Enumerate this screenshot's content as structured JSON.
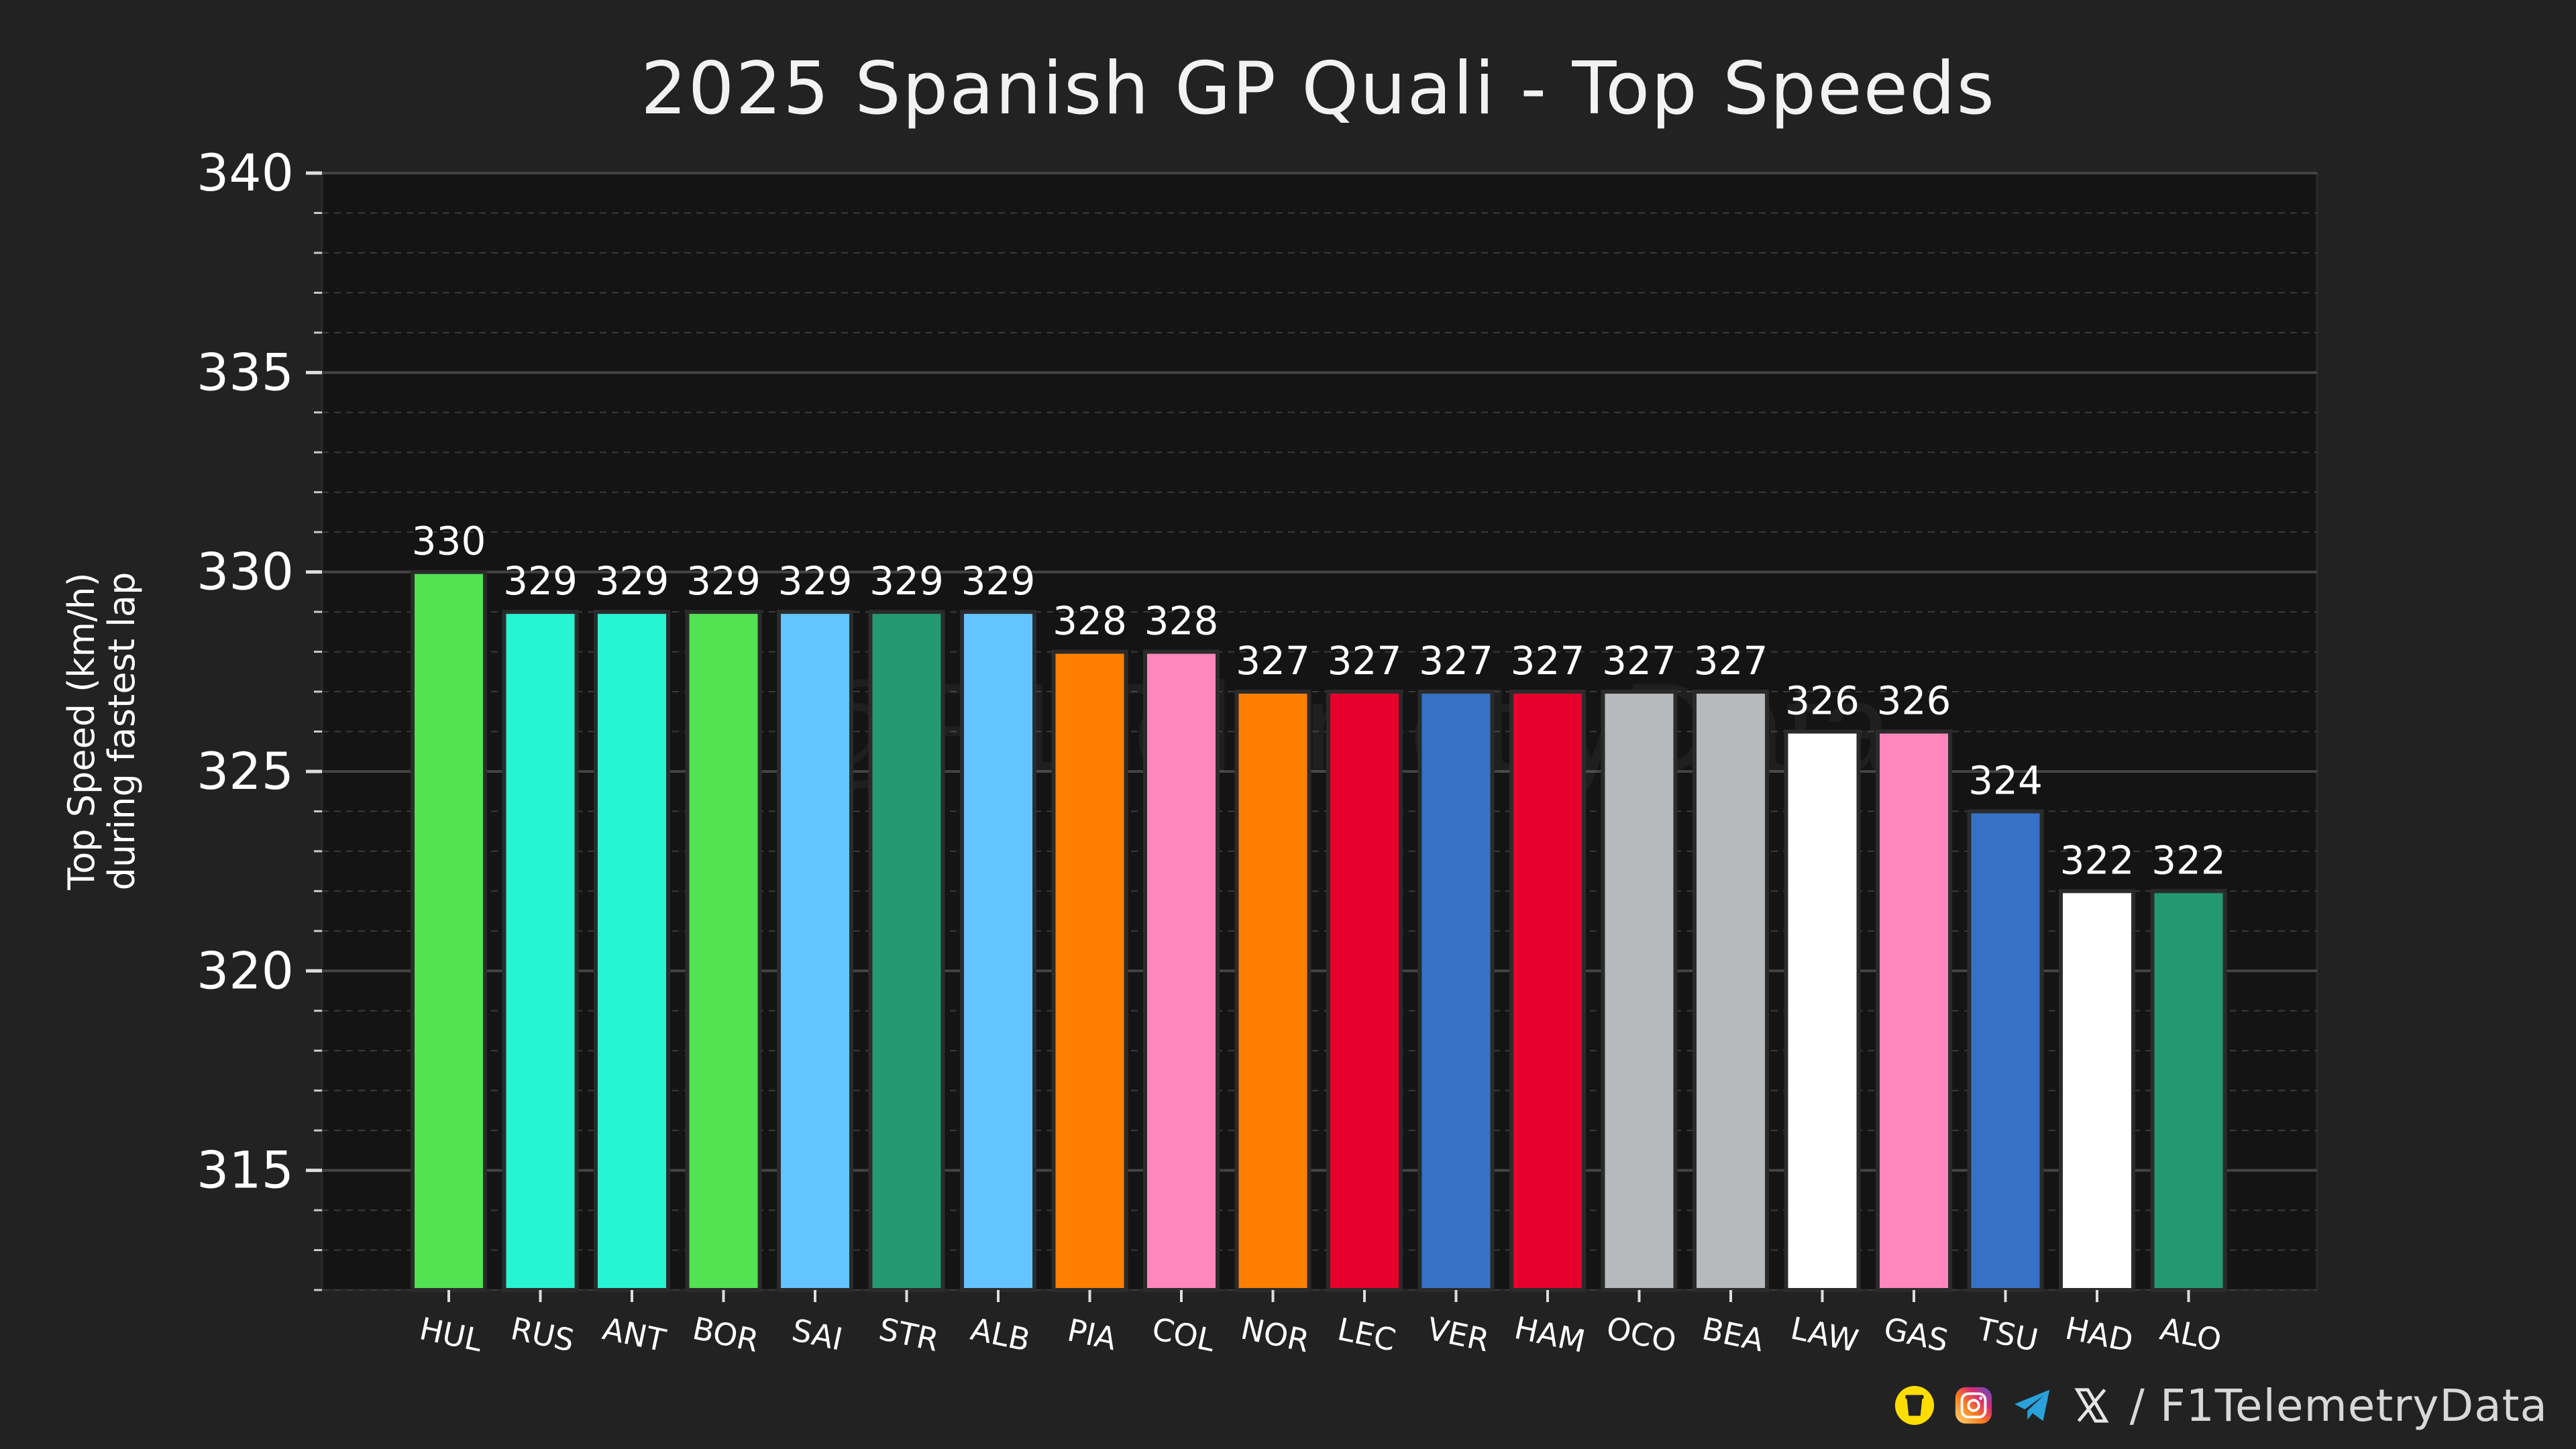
{
  "chart_data": {
    "type": "bar",
    "title": "2025 Spanish GP Quali - Top Speeds",
    "xlabel": "",
    "ylabel": "Top Speed (km/h)",
    "ylabel_line2": "during fastest lap",
    "ylim": [
      312,
      340
    ],
    "yticks": [
      315,
      320,
      325,
      330,
      335,
      340
    ],
    "grid": true,
    "watermark": "@F1TelemetryData",
    "categories": [
      "HUL",
      "RUS",
      "ANT",
      "BOR",
      "SAI",
      "STR",
      "ALB",
      "PIA",
      "COL",
      "NOR",
      "LEC",
      "VER",
      "HAM",
      "OCO",
      "BEA",
      "LAW",
      "GAS",
      "TSU",
      "HAD",
      "ALO"
    ],
    "values": [
      330,
      329,
      329,
      329,
      329,
      329,
      329,
      328,
      328,
      327,
      327,
      327,
      327,
      327,
      327,
      326,
      326,
      324,
      322,
      322
    ],
    "colors": [
      "#52e252",
      "#27f4d2",
      "#27f4d2",
      "#52e252",
      "#64c4ff",
      "#229971",
      "#64c4ff",
      "#ff8000",
      "#ff87bc",
      "#ff8000",
      "#e8002d",
      "#3671c6",
      "#e8002d",
      "#b6babd",
      "#b6babd",
      "#ffffff",
      "#ff87bc",
      "#3671c6",
      "#ffffff",
      "#229971"
    ]
  },
  "footer": {
    "handle": "/ F1TelemetryData",
    "icons": [
      "buymeacoffee-icon",
      "instagram-icon",
      "telegram-icon",
      "x-icon"
    ]
  }
}
